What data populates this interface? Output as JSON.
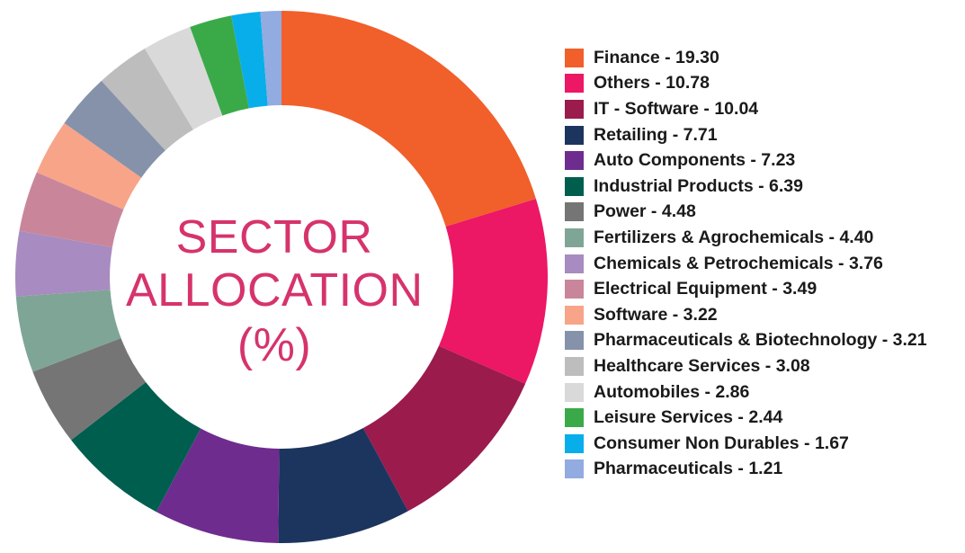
{
  "center": {
    "line1": "SECTOR",
    "line2": "ALLOCATION",
    "line3": "(%)",
    "color": "#d6336c"
  },
  "chart_data": {
    "type": "pie",
    "variant": "donut",
    "legend_position": "right",
    "categories": [
      "Finance",
      "Others",
      "IT - Software",
      "Retailing",
      "Auto Components",
      "Industrial Products",
      "Power",
      "Fertilizers & Agrochemicals",
      "Chemicals & Petrochemicals",
      "Electrical Equipment",
      "Software",
      "Pharmaceuticals & Biotechnology",
      "Healthcare Services",
      "Automobiles",
      "Leisure Services",
      "Consumer Non Durables",
      "Pharmaceuticals"
    ],
    "values": [
      19.3,
      10.78,
      10.04,
      7.71,
      7.23,
      6.39,
      4.48,
      4.4,
      3.76,
      3.49,
      3.22,
      3.21,
      3.08,
      2.86,
      2.44,
      1.67,
      1.21
    ],
    "legend_labels": [
      "Finance - 19.30",
      "Others - 10.78",
      "IT - Software - 10.04",
      "Retailing - 7.71",
      "Auto Components - 7.23",
      "Industrial Products - 6.39",
      "Power - 4.48",
      "Fertilizers & Agrochemicals - 4.40",
      "Chemicals & Petrochemicals - 3.76",
      "Electrical Equipment - 3.49",
      "Software - 3.22",
      "Pharmaceuticals & Biotechnology - 3.21",
      "Healthcare Services - 3.08",
      "Automobiles - 2.86",
      "Leisure Services - 2.44",
      "Consumer Non Durables - 1.67",
      "Pharmaceuticals - 1.21"
    ],
    "colors": [
      "#f15f2a",
      "#ec1765",
      "#9b1b4d",
      "#1c355e",
      "#6f2c8f",
      "#005e4f",
      "#757575",
      "#7fa596",
      "#a88bc0",
      "#c9869a",
      "#f8a489",
      "#8592aa",
      "#bdbdbd",
      "#d9d9d9",
      "#3aaa49",
      "#08aeea",
      "#92abe0"
    ]
  }
}
